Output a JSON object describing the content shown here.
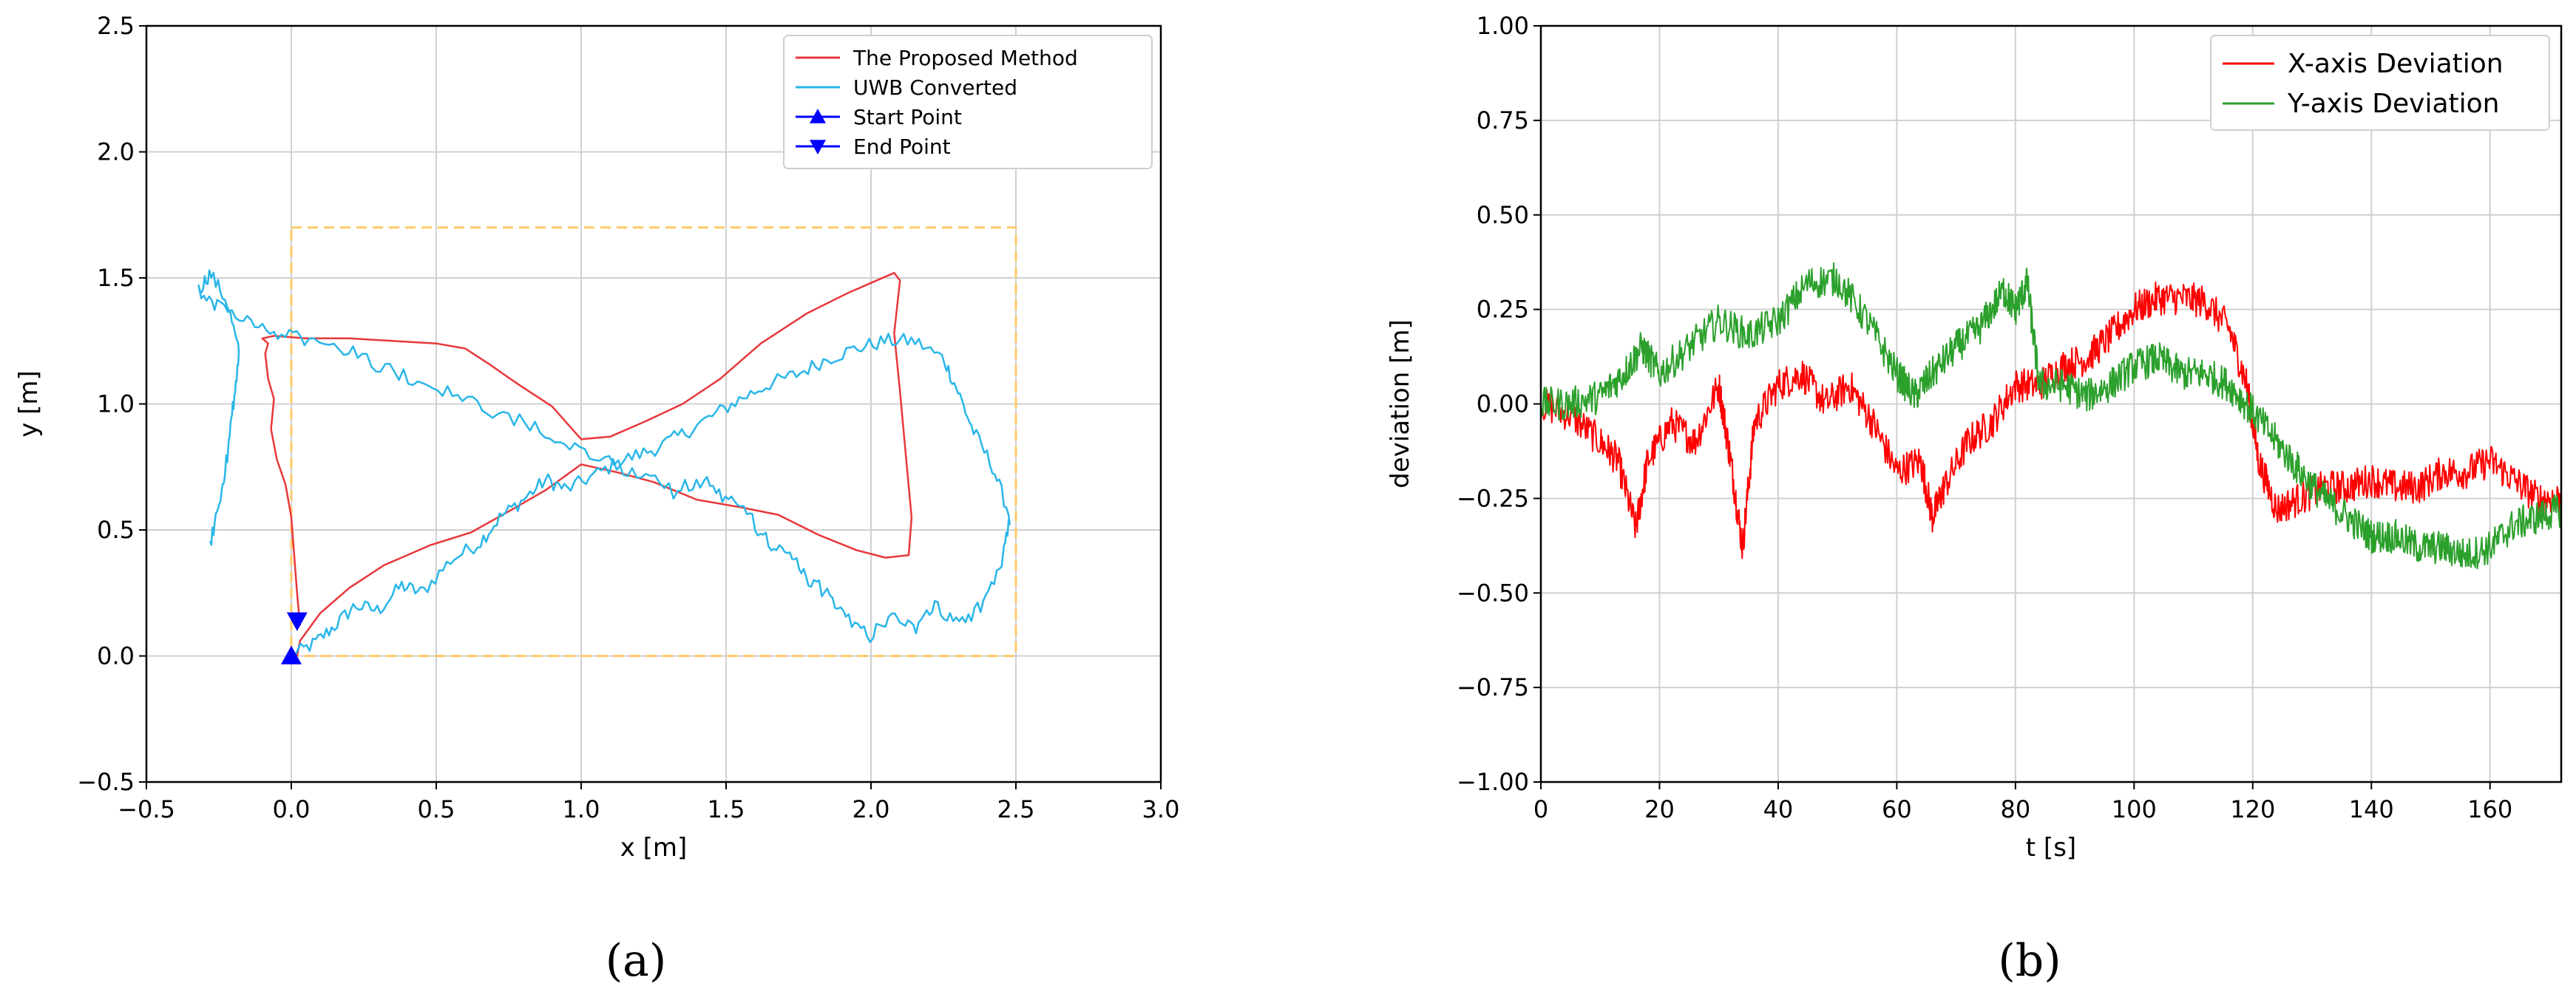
{
  "chart_data": [
    {
      "type": "line",
      "caption": "(a)",
      "xlabel": "x [m]",
      "ylabel": "y [m]",
      "xlim": [
        -0.5,
        3.0
      ],
      "ylim": [
        -0.5,
        2.5
      ],
      "xticks": [
        -0.5,
        0.0,
        0.5,
        1.0,
        1.5,
        2.0,
        2.5,
        3.0
      ],
      "yticks": [
        -0.5,
        0.0,
        0.5,
        1.0,
        1.5,
        2.0,
        2.5
      ],
      "xtick_labels": [
        "−0.5",
        "0.0",
        "0.5",
        "1.0",
        "1.5",
        "2.0",
        "2.5",
        "3.0"
      ],
      "ytick_labels": [
        "−0.5",
        "0.0",
        "0.5",
        "1.0",
        "1.5",
        "2.0",
        "2.5"
      ],
      "grid": true,
      "legend_position": "top-right",
      "boundary_rect": {
        "x": [
          0.0,
          2.5
        ],
        "y": [
          0.0,
          1.7
        ],
        "color": "#ffc966",
        "style": "dashed"
      },
      "series": [
        {
          "name": "The Proposed Method",
          "color": "#e8383b",
          "x": [
            0.03,
            0.02,
            0.01,
            0.0,
            -0.02,
            -0.05,
            -0.07,
            -0.06,
            -0.08,
            -0.09,
            -0.08,
            -0.1,
            -0.06,
            0.05,
            0.2,
            0.35,
            0.5,
            0.6,
            0.68,
            0.78,
            0.9,
            1.0,
            1.1,
            1.22,
            1.35,
            1.48,
            1.62,
            1.78,
            1.92,
            2.0,
            2.08,
            2.1,
            2.08,
            2.1,
            2.12,
            2.14,
            2.13,
            2.05,
            1.95,
            1.82,
            1.68,
            1.55,
            1.4,
            1.25,
            1.12,
            1.0,
            0.88,
            0.76,
            0.62,
            0.48,
            0.32,
            0.2,
            0.1,
            0.03,
            0.02
          ],
          "y": [
            0.12,
            0.25,
            0.4,
            0.55,
            0.68,
            0.78,
            0.9,
            1.02,
            1.1,
            1.2,
            1.24,
            1.26,
            1.27,
            1.26,
            1.26,
            1.25,
            1.24,
            1.22,
            1.16,
            1.08,
            0.99,
            0.86,
            0.87,
            0.93,
            1.0,
            1.1,
            1.24,
            1.36,
            1.44,
            1.48,
            1.52,
            1.49,
            1.28,
            1.05,
            0.8,
            0.55,
            0.4,
            0.39,
            0.42,
            0.48,
            0.56,
            0.59,
            0.62,
            0.69,
            0.73,
            0.76,
            0.66,
            0.58,
            0.49,
            0.44,
            0.36,
            0.27,
            0.17,
            0.06,
            0.0
          ]
        },
        {
          "name": "UWB Converted",
          "color": "#29b6e8",
          "x": [
            0.0,
            0.08,
            0.15,
            0.22,
            0.3,
            0.38,
            0.45,
            0.55,
            0.65,
            0.72,
            0.8,
            0.88,
            0.95,
            1.05,
            1.15,
            1.25,
            1.35,
            1.45,
            1.55,
            1.65,
            1.75,
            1.85,
            1.95,
            2.05,
            2.15,
            2.25,
            2.3,
            2.35,
            2.42,
            2.48,
            2.45,
            2.38,
            2.3,
            2.22,
            2.15,
            2.08,
            2.0,
            1.92,
            1.85,
            1.78,
            1.72,
            1.65,
            1.58,
            1.5,
            1.42,
            1.32,
            1.2,
            1.08,
            0.95,
            0.82,
            0.68,
            0.55,
            0.42,
            0.3,
            0.18,
            0.05,
            -0.05,
            -0.15,
            -0.25,
            -0.32,
            -0.28,
            -0.22,
            -0.18,
            -0.2,
            -0.22,
            -0.25,
            -0.28
          ],
          "y": [
            0.0,
            0.05,
            0.12,
            0.2,
            0.18,
            0.28,
            0.25,
            0.38,
            0.45,
            0.55,
            0.62,
            0.7,
            0.66,
            0.72,
            0.78,
            0.82,
            0.88,
            0.95,
            1.02,
            1.08,
            1.12,
            1.18,
            1.22,
            1.25,
            1.25,
            1.18,
            1.05,
            0.9,
            0.75,
            0.55,
            0.35,
            0.2,
            0.12,
            0.2,
            0.1,
            0.18,
            0.08,
            0.15,
            0.25,
            0.3,
            0.4,
            0.45,
            0.55,
            0.62,
            0.7,
            0.65,
            0.72,
            0.78,
            0.85,
            0.92,
            0.98,
            1.05,
            1.1,
            1.15,
            1.22,
            1.26,
            1.28,
            1.32,
            1.38,
            1.45,
            1.52,
            1.4,
            1.2,
            1.0,
            0.8,
            0.6,
            0.45
          ]
        }
      ],
      "markers": [
        {
          "name": "Start Point",
          "symbol": "triangle-up",
          "color": "#0000ff",
          "x": 0.0,
          "y": 0.0
        },
        {
          "name": "End Point",
          "symbol": "triangle-down",
          "color": "#0000ff",
          "x": 0.02,
          "y": 0.14
        }
      ]
    },
    {
      "type": "line",
      "caption": "(b)",
      "xlabel": "t [s]",
      "ylabel": "deviation [m]",
      "xlim": [
        0,
        172
      ],
      "ylim": [
        -1.0,
        1.0
      ],
      "xticks": [
        0,
        20,
        40,
        60,
        80,
        100,
        120,
        140,
        160
      ],
      "yticks": [
        -1.0,
        -0.75,
        -0.5,
        -0.25,
        0.0,
        0.25,
        0.5,
        0.75,
        1.0
      ],
      "xtick_labels": [
        "0",
        "20",
        "40",
        "60",
        "80",
        "100",
        "120",
        "140",
        "160"
      ],
      "ytick_labels": [
        "−1.00",
        "−0.75",
        "−0.50",
        "−0.25",
        "0.00",
        "0.25",
        "0.50",
        "0.75",
        "1.00"
      ],
      "grid": true,
      "legend_position": "top-right",
      "series": [
        {
          "name": "X-axis Deviation",
          "color": "#ff0000",
          "x": [
            0,
            5,
            10,
            13,
            16,
            18,
            22,
            26,
            30,
            32,
            34,
            36,
            40,
            44,
            48,
            52,
            56,
            60,
            64,
            66,
            68,
            72,
            76,
            80,
            84,
            88,
            92,
            96,
            100,
            104,
            108,
            112,
            116,
            119,
            121,
            124,
            128,
            132,
            136,
            140,
            144,
            148,
            152,
            156,
            160,
            164,
            168,
            172
          ],
          "y": [
            0.0,
            -0.03,
            -0.1,
            -0.15,
            -0.33,
            -0.15,
            -0.05,
            -0.1,
            0.05,
            -0.15,
            -0.38,
            -0.05,
            0.05,
            0.08,
            0.0,
            0.05,
            -0.05,
            -0.18,
            -0.15,
            -0.3,
            -0.22,
            -0.1,
            -0.05,
            0.05,
            0.05,
            0.1,
            0.12,
            0.18,
            0.25,
            0.28,
            0.28,
            0.27,
            0.2,
            0.05,
            -0.15,
            -0.28,
            -0.25,
            -0.22,
            -0.22,
            -0.2,
            -0.22,
            -0.22,
            -0.18,
            -0.18,
            -0.15,
            -0.2,
            -0.25,
            -0.25
          ]
        },
        {
          "name": "Y-axis Deviation",
          "color": "#2ca02c",
          "x": [
            0,
            5,
            10,
            14,
            17,
            20,
            25,
            30,
            35,
            40,
            45,
            50,
            55,
            60,
            63,
            66,
            70,
            74,
            78,
            80,
            82,
            84,
            88,
            92,
            96,
            100,
            104,
            108,
            112,
            116,
            120,
            124,
            128,
            132,
            136,
            140,
            144,
            148,
            152,
            156,
            160,
            164,
            168,
            172
          ],
          "y": [
            0.0,
            0.0,
            0.02,
            0.08,
            0.15,
            0.08,
            0.15,
            0.22,
            0.18,
            0.22,
            0.32,
            0.33,
            0.22,
            0.08,
            0.02,
            0.08,
            0.15,
            0.2,
            0.3,
            0.25,
            0.32,
            0.05,
            0.05,
            0.02,
            0.05,
            0.1,
            0.12,
            0.08,
            0.08,
            0.05,
            -0.02,
            -0.1,
            -0.18,
            -0.25,
            -0.3,
            -0.35,
            -0.35,
            -0.38,
            -0.38,
            -0.4,
            -0.38,
            -0.32,
            -0.3,
            -0.28
          ]
        }
      ]
    }
  ]
}
